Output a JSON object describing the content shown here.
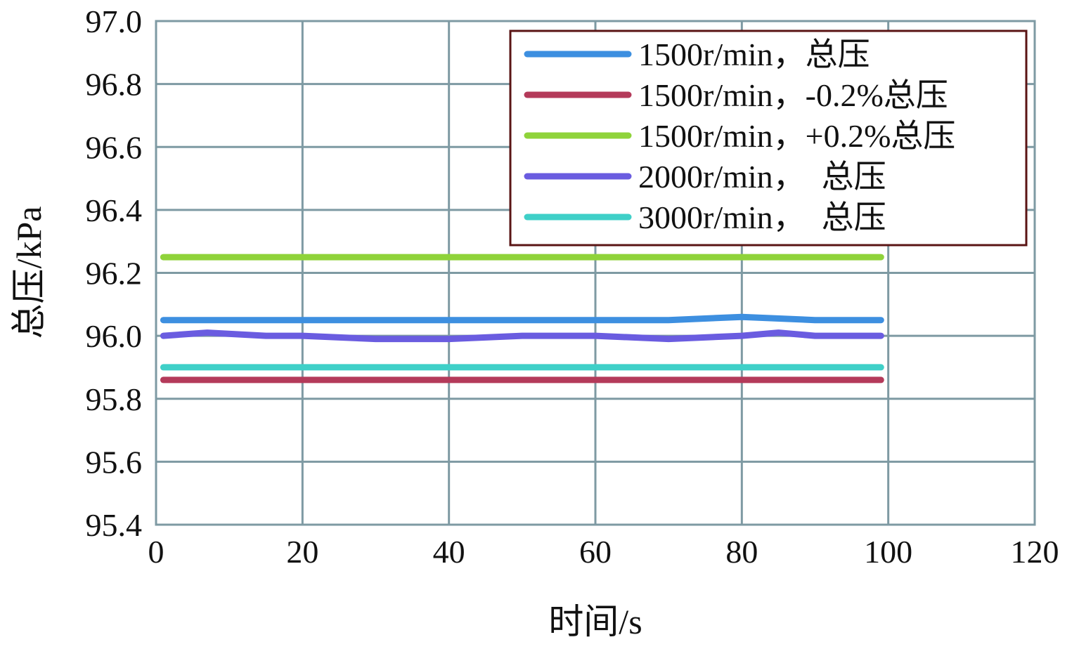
{
  "chart_data": {
    "type": "line",
    "title": "",
    "xlabel": "时间/s",
    "ylabel": "总压/kPa",
    "xlim": [
      0,
      120
    ],
    "ylim": [
      95.4,
      97.0
    ],
    "x_ticks": [
      "0",
      "20",
      "40",
      "60",
      "80",
      "100",
      "120"
    ],
    "y_ticks": [
      "95.4",
      "95.6",
      "95.8",
      "96.0",
      "96.2",
      "96.4",
      "96.6",
      "96.8",
      "97.0"
    ],
    "grid": true,
    "legend_position": "top-right",
    "series": [
      {
        "name": "1500r/min，总压",
        "color": "#3d8fe0",
        "x": [
          1,
          10,
          20,
          30,
          40,
          50,
          60,
          70,
          80,
          90,
          99
        ],
        "values": [
          96.05,
          96.05,
          96.05,
          96.05,
          96.05,
          96.05,
          96.05,
          96.05,
          96.06,
          96.05,
          96.05
        ]
      },
      {
        "name": "1500r/min，-0.2%总压",
        "color": "#b43a5a",
        "x": [
          1,
          10,
          20,
          30,
          40,
          50,
          60,
          70,
          80,
          90,
          99
        ],
        "values": [
          95.86,
          95.86,
          95.86,
          95.86,
          95.86,
          95.86,
          95.86,
          95.86,
          95.86,
          95.86,
          95.86
        ]
      },
      {
        "name": "1500r/min，+0.2%总压",
        "color": "#8fd33a",
        "x": [
          1,
          10,
          20,
          30,
          40,
          50,
          60,
          70,
          80,
          90,
          99
        ],
        "values": [
          96.25,
          96.25,
          96.25,
          96.25,
          96.25,
          96.25,
          96.25,
          96.25,
          96.25,
          96.25,
          96.25
        ]
      },
      {
        "name": "2000r/min，  总压",
        "color": "#6a5ce0",
        "x": [
          1,
          7,
          15,
          20,
          30,
          40,
          50,
          60,
          70,
          80,
          85,
          90,
          99
        ],
        "values": [
          96.0,
          96.01,
          96.0,
          96.0,
          95.99,
          95.99,
          96.0,
          96.0,
          95.99,
          96.0,
          96.01,
          96.0,
          96.0
        ]
      },
      {
        "name": "3000r/min，  总压",
        "color": "#3fd0c8",
        "x": [
          1,
          10,
          20,
          30,
          40,
          50,
          60,
          70,
          80,
          90,
          99
        ],
        "values": [
          95.9,
          95.9,
          95.9,
          95.9,
          95.9,
          95.9,
          95.9,
          95.9,
          95.9,
          95.9,
          95.9
        ]
      }
    ]
  }
}
